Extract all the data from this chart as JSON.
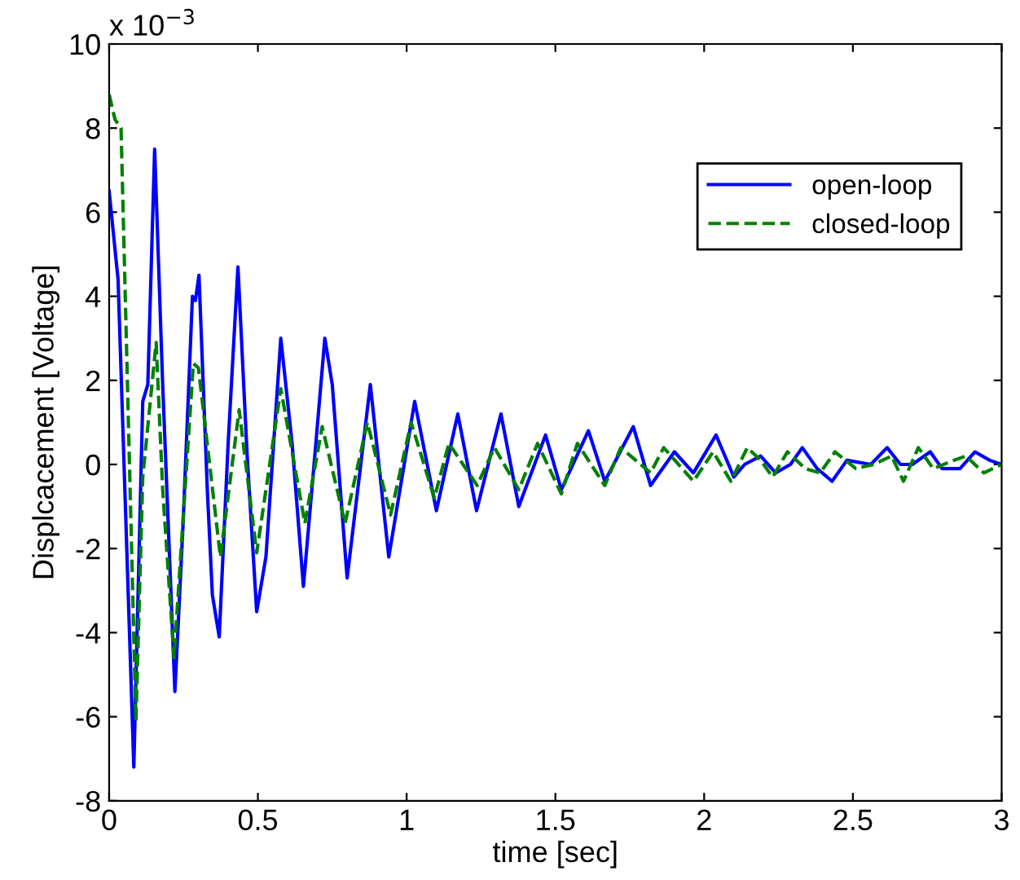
{
  "chart_data": {
    "type": "line",
    "xlabel": "time [sec]",
    "ylabel": "Displcacement [Voltage]",
    "annotations": [
      "x 10$^{−3}$"
    ],
    "xlim": [
      0,
      3
    ],
    "xticks": [
      0,
      0.5,
      1,
      1.5,
      2,
      2.5,
      3
    ],
    "ylim": [
      -8,
      10
    ],
    "yticks": [
      -8,
      -6,
      -4,
      -2,
      0,
      2,
      4,
      6,
      8,
      10
    ],
    "grid": false,
    "legend": "top right",
    "marker": "none",
    "series": [
      {
        "name": "open-loop",
        "color": "#0000ff",
        "line_style": "solid",
        "x": [
          0,
          0.03,
          0.083,
          0.113,
          0.13,
          0.153,
          0.18,
          0.221,
          0.248,
          0.28,
          0.29,
          0.302,
          0.33,
          0.347,
          0.37,
          0.4,
          0.433,
          0.464,
          0.496,
          0.527,
          0.577,
          0.615,
          0.653,
          0.69,
          0.725,
          0.75,
          0.8,
          0.878,
          0.94,
          1.027,
          1.1,
          1.172,
          1.235,
          1.317,
          1.377,
          1.467,
          1.52,
          1.611,
          1.666,
          1.762,
          1.82,
          1.9,
          1.964,
          2.04,
          2.1,
          2.136,
          2.19,
          2.24,
          2.29,
          2.33,
          2.38,
          2.43,
          2.48,
          2.56,
          2.615,
          2.66,
          2.7,
          2.76,
          2.8,
          2.86,
          2.91,
          2.96,
          3.0
        ],
        "values": [
          6.5,
          4.4,
          -7.2,
          1.5,
          1.9,
          7.5,
          1.9,
          -5.4,
          -1.5,
          4.0,
          3.9,
          4.5,
          -0.6,
          -3.1,
          -4.1,
          0.5,
          4.7,
          0.2,
          -3.5,
          -2.2,
          3.0,
          0.5,
          -2.9,
          0.1,
          3.0,
          1.9,
          -2.7,
          1.9,
          -2.2,
          1.5,
          -1.1,
          1.2,
          -1.1,
          1.2,
          -1.0,
          0.7,
          -0.6,
          0.8,
          -0.4,
          0.9,
          -0.5,
          0.3,
          -0.2,
          0.7,
          -0.3,
          0.0,
          0.2,
          -0.2,
          0.0,
          0.4,
          -0.1,
          -0.4,
          0.1,
          0.0,
          0.4,
          0.0,
          0.0,
          0.3,
          -0.1,
          -0.1,
          0.3,
          0.1,
          0.0
        ]
      },
      {
        "name": "closed-loop",
        "color": "#008000",
        "line_style": "dashed",
        "x": [
          0,
          0.02,
          0.04,
          0.09,
          0.113,
          0.158,
          0.18,
          0.218,
          0.283,
          0.3,
          0.374,
          0.437,
          0.496,
          0.577,
          0.658,
          0.716,
          0.793,
          0.868,
          0.946,
          1.015,
          1.093,
          1.142,
          1.237,
          1.295,
          1.377,
          1.44,
          1.52,
          1.574,
          1.666,
          1.72,
          1.82,
          1.864,
          1.964,
          2.03,
          2.09,
          2.145,
          2.19,
          2.23,
          2.28,
          2.34,
          2.39,
          2.44,
          2.51,
          2.57,
          2.63,
          2.67,
          2.72,
          2.77,
          2.84,
          2.88,
          2.94,
          3.0
        ],
        "values": [
          8.8,
          8.2,
          8.0,
          -6.1,
          -0.3,
          2.9,
          -0.6,
          -4.6,
          2.4,
          2.3,
          -2.2,
          1.3,
          -2.1,
          1.8,
          -1.4,
          0.9,
          -1.4,
          1.0,
          -1.2,
          1.0,
          -0.8,
          0.5,
          -0.5,
          0.4,
          -0.6,
          0.5,
          -0.7,
          0.5,
          -0.5,
          0.4,
          -0.2,
          0.4,
          -0.4,
          0.3,
          -0.4,
          0.4,
          0.1,
          -0.3,
          0.3,
          -0.1,
          -0.2,
          0.3,
          -0.1,
          0.0,
          0.2,
          -0.4,
          0.4,
          -0.1,
          0.1,
          0.2,
          -0.2,
          0.0
        ]
      }
    ]
  }
}
